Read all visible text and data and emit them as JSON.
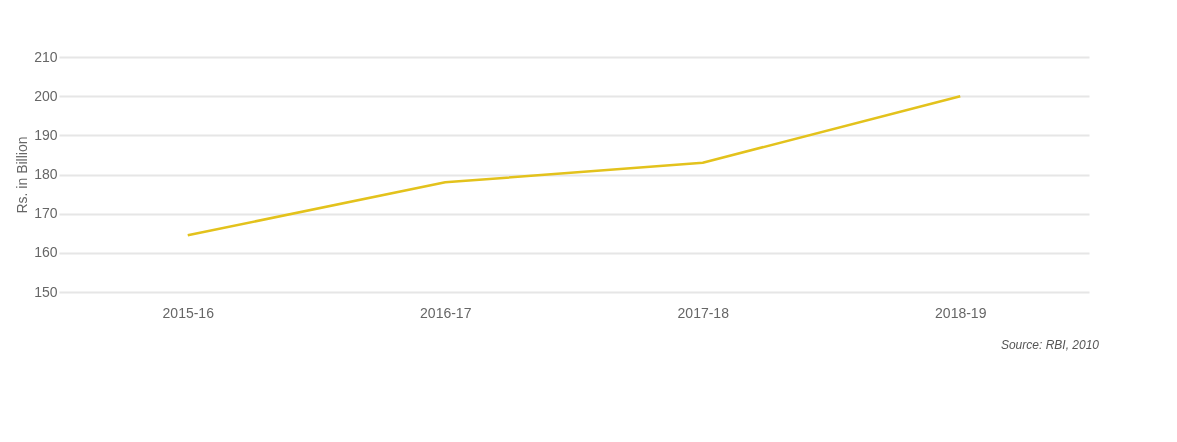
{
  "chart_data": {
    "type": "line",
    "ylabel": "Rs. in Billion",
    "categories": [
      "2015-16",
      "2016-17",
      "2017-18",
      "2018-19"
    ],
    "series": [
      {
        "color": "#e3c21c",
        "values": [
          164.5,
          178,
          183,
          200
        ]
      }
    ],
    "ylim": [
      150,
      210
    ],
    "yticks": [
      150,
      160,
      170,
      180,
      190,
      200,
      210
    ],
    "grid": "y",
    "legend": false,
    "marker": "none",
    "line_style": "solid",
    "annotations": [
      "Source: RBI, 2010"
    ]
  }
}
